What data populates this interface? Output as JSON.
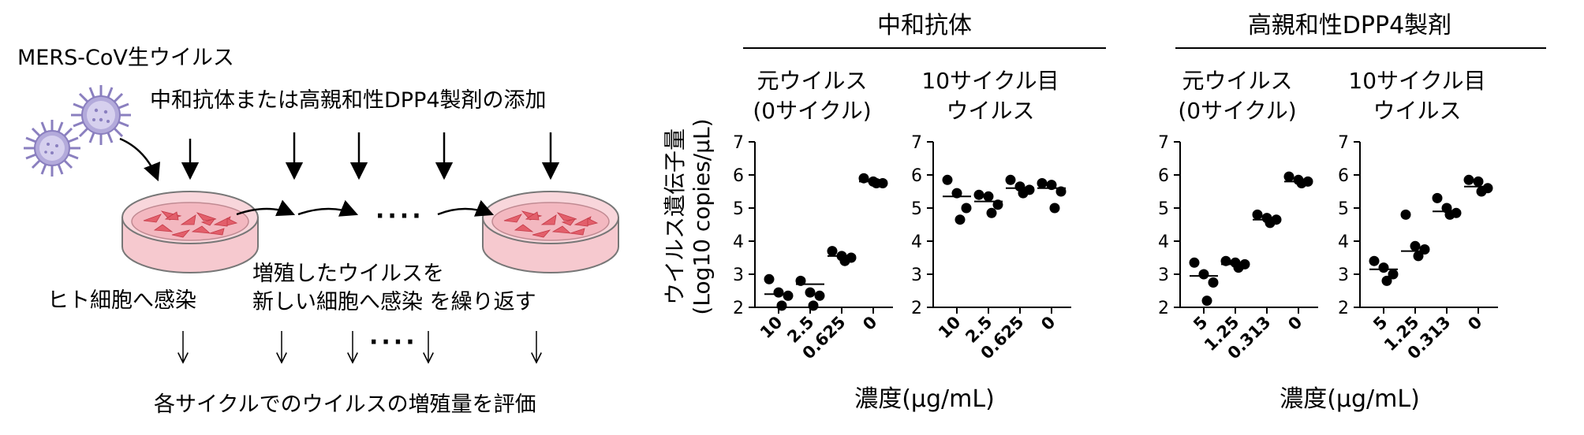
{
  "schematic": {
    "virus_label": "MERS-CoV生ウイルス",
    "addition_label": "中和抗体または高親和性DPP4製剤の添加",
    "infect_label": "ヒト細胞へ感染",
    "repeat_line1": "増殖したウイルスを",
    "repeat_line2": "新しい細胞へ感染 を繰り返す",
    "dots": "····",
    "dots_bottom": "····",
    "evaluate_label": "各サイクルでのウイルスの増殖量を評価",
    "colors": {
      "virus": "#8a7fbf",
      "dish": "#f6c9cf",
      "cells": "#e35f6b"
    }
  },
  "figure": {
    "shared_ylabel_line1": "ウイルス遺伝子量",
    "shared_ylabel_line2": "(Log10 copies/μL)",
    "groups": [
      {
        "title": "中和抗体",
        "xlabel": "濃度(μg/mL)"
      },
      {
        "title": "高親和性DPP4製剤",
        "xlabel": "濃度(μg/mL)"
      }
    ]
  },
  "chart_data": [
    {
      "type": "scatter",
      "group": "中和抗体",
      "title_line1": "元ウイルス",
      "title_line2": "(0サイクル)",
      "categories": [
        "10",
        "2.5",
        "0.625",
        "0"
      ],
      "ylim": [
        2,
        7
      ],
      "yticks": [
        "2",
        "3",
        "4",
        "5",
        "6",
        "7"
      ],
      "points": [
        [
          2.85,
          2.45,
          2.35,
          2.05
        ],
        [
          2.8,
          2.45,
          2.35,
          2.05
        ],
        [
          3.7,
          3.55,
          3.5,
          3.4
        ],
        [
          5.9,
          5.8,
          5.75,
          5.75
        ]
      ],
      "medians": [
        2.4,
        2.7,
        3.55,
        5.8
      ]
    },
    {
      "type": "scatter",
      "group": "中和抗体",
      "title_line1": "10サイクル目",
      "title_line2": "ウイルス",
      "categories": [
        "10",
        "2.5",
        "0.625",
        "0"
      ],
      "ylim": [
        2,
        7
      ],
      "yticks": [
        "2",
        "3",
        "4",
        "5",
        "6",
        "7"
      ],
      "points": [
        [
          5.85,
          5.45,
          5.0,
          4.65
        ],
        [
          5.4,
          5.35,
          5.1,
          4.85
        ],
        [
          5.85,
          5.65,
          5.55,
          5.45
        ],
        [
          5.75,
          5.7,
          5.5,
          5.0
        ]
      ],
      "medians": [
        5.35,
        5.2,
        5.6,
        5.6
      ]
    },
    {
      "type": "scatter",
      "group": "高親和性DPP4製剤",
      "title_line1": "元ウイルス",
      "title_line2": "(0サイクル)",
      "categories": [
        "5",
        "1.25",
        "0.313",
        "0"
      ],
      "ylim": [
        2,
        7
      ],
      "yticks": [
        "2",
        "3",
        "4",
        "5",
        "6",
        "7"
      ],
      "points": [
        [
          3.35,
          3.0,
          2.75,
          2.2
        ],
        [
          3.4,
          3.35,
          3.3,
          3.2
        ],
        [
          4.8,
          4.7,
          4.65,
          4.55
        ],
        [
          5.95,
          5.85,
          5.8,
          5.75
        ]
      ],
      "medians": [
        2.95,
        3.3,
        4.65,
        5.8
      ]
    },
    {
      "type": "scatter",
      "group": "高親和性DPP4製剤",
      "title_line1": "10サイクル目",
      "title_line2": "ウイルス",
      "categories": [
        "5",
        "1.25",
        "0.313",
        "0"
      ],
      "ylim": [
        2,
        7
      ],
      "yticks": [
        "2",
        "3",
        "4",
        "5",
        "6",
        "7"
      ],
      "points": [
        [
          3.4,
          3.2,
          3.0,
          2.8
        ],
        [
          4.8,
          3.85,
          3.75,
          3.55
        ],
        [
          5.3,
          5.0,
          4.85,
          4.8
        ],
        [
          5.85,
          5.8,
          5.6,
          5.5
        ]
      ],
      "medians": [
        3.15,
        3.7,
        4.9,
        5.65
      ]
    }
  ]
}
